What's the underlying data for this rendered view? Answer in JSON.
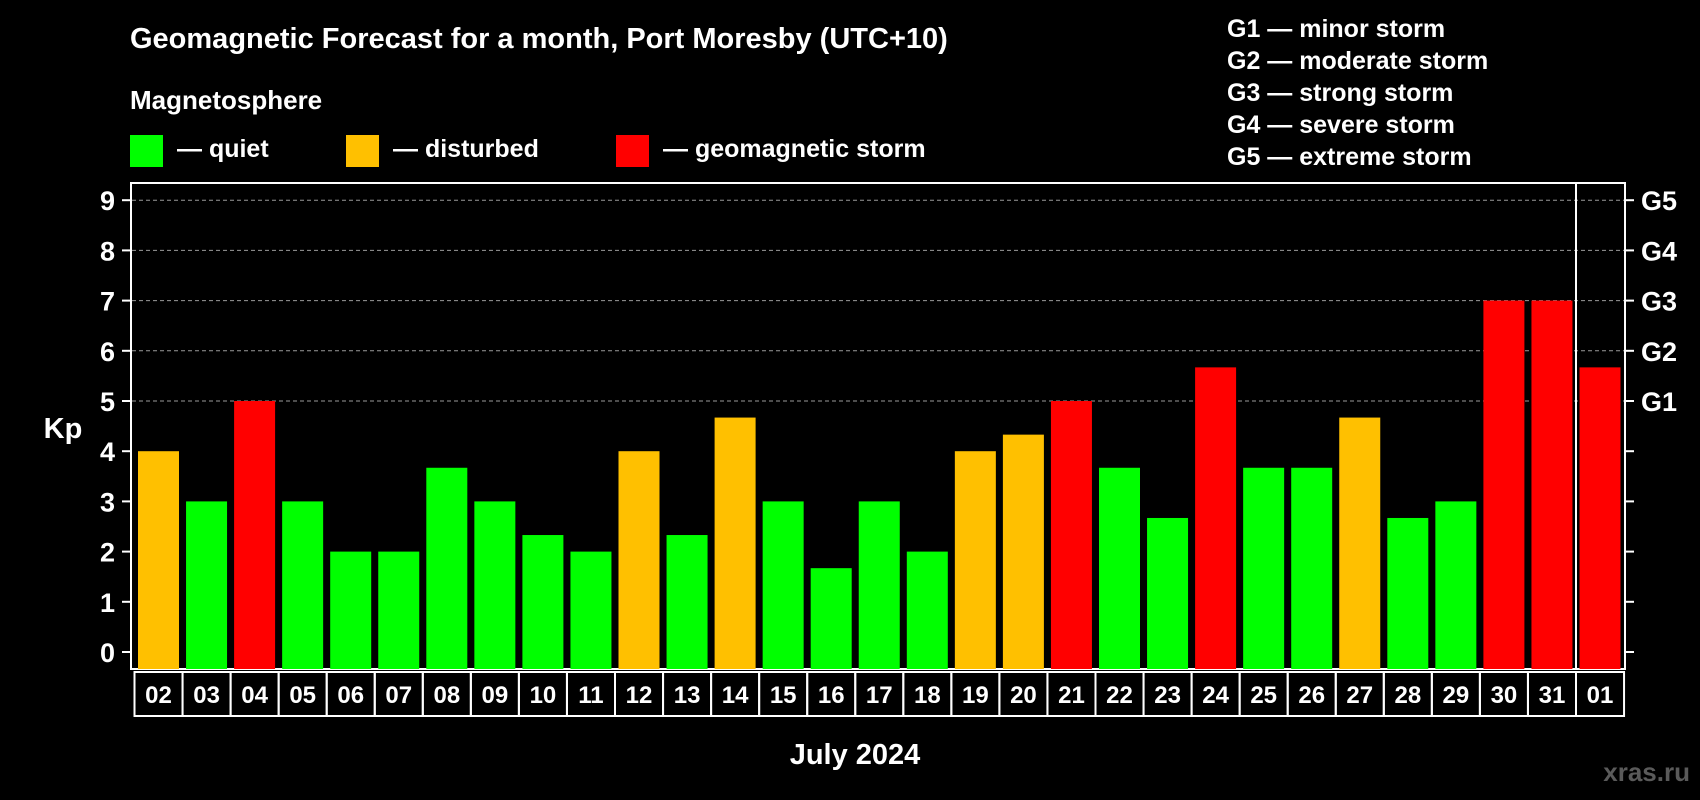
{
  "chart_data": {
    "type": "bar",
    "title": "Geomagnetic Forecast for a month, Port Moresby (UTC+10)",
    "subtitle": "Magnetosphere",
    "legend": [
      {
        "label": "— quiet",
        "color": "#00ff00"
      },
      {
        "label": "— disturbed",
        "color": "#ffc000"
      },
      {
        "label": "— geomagnetic storm",
        "color": "#ff0000"
      }
    ],
    "g_scale": [
      "G1 — minor storm",
      "G2 — moderate storm",
      "G3 — strong storm",
      "G4 — severe storm",
      "G5 — extreme storm"
    ],
    "ylabel": "Kp",
    "xlabel": "July 2024",
    "ylim": [
      0,
      9
    ],
    "yticks": [
      "0",
      "1",
      "2",
      "3",
      "4",
      "5",
      "6",
      "7",
      "8",
      "9"
    ],
    "right_axis": [
      {
        "value": 5,
        "label": "G1"
      },
      {
        "value": 6,
        "label": "G2"
      },
      {
        "value": 7,
        "label": "G3"
      },
      {
        "value": 8,
        "label": "G4"
      },
      {
        "value": 9,
        "label": "G5"
      }
    ],
    "grid": true,
    "categories": [
      "02",
      "03",
      "04",
      "05",
      "06",
      "07",
      "08",
      "09",
      "10",
      "11",
      "12",
      "13",
      "14",
      "15",
      "16",
      "17",
      "18",
      "19",
      "20",
      "21",
      "22",
      "23",
      "24",
      "25",
      "26",
      "27",
      "28",
      "29",
      "30",
      "31",
      "01"
    ],
    "values": [
      4,
      3,
      5,
      3,
      2,
      2,
      3.67,
      3,
      2.33,
      2,
      4,
      2.33,
      4.67,
      3,
      1.67,
      3,
      2,
      4,
      4.33,
      5,
      3.67,
      2.67,
      5.67,
      3.67,
      3.67,
      4.67,
      2.67,
      3,
      7,
      7,
      5.67
    ],
    "status": [
      "disturbed",
      "quiet",
      "storm",
      "quiet",
      "quiet",
      "quiet",
      "quiet",
      "quiet",
      "quiet",
      "quiet",
      "disturbed",
      "quiet",
      "disturbed",
      "quiet",
      "quiet",
      "quiet",
      "quiet",
      "disturbed",
      "disturbed",
      "storm",
      "quiet",
      "quiet",
      "storm",
      "quiet",
      "quiet",
      "disturbed",
      "quiet",
      "quiet",
      "storm",
      "storm",
      "storm"
    ],
    "status_colors": {
      "quiet": "#00ff00",
      "disturbed": "#ffc000",
      "storm": "#ff0000"
    },
    "month_separator_after": "31"
  },
  "watermark": "xras.ru"
}
